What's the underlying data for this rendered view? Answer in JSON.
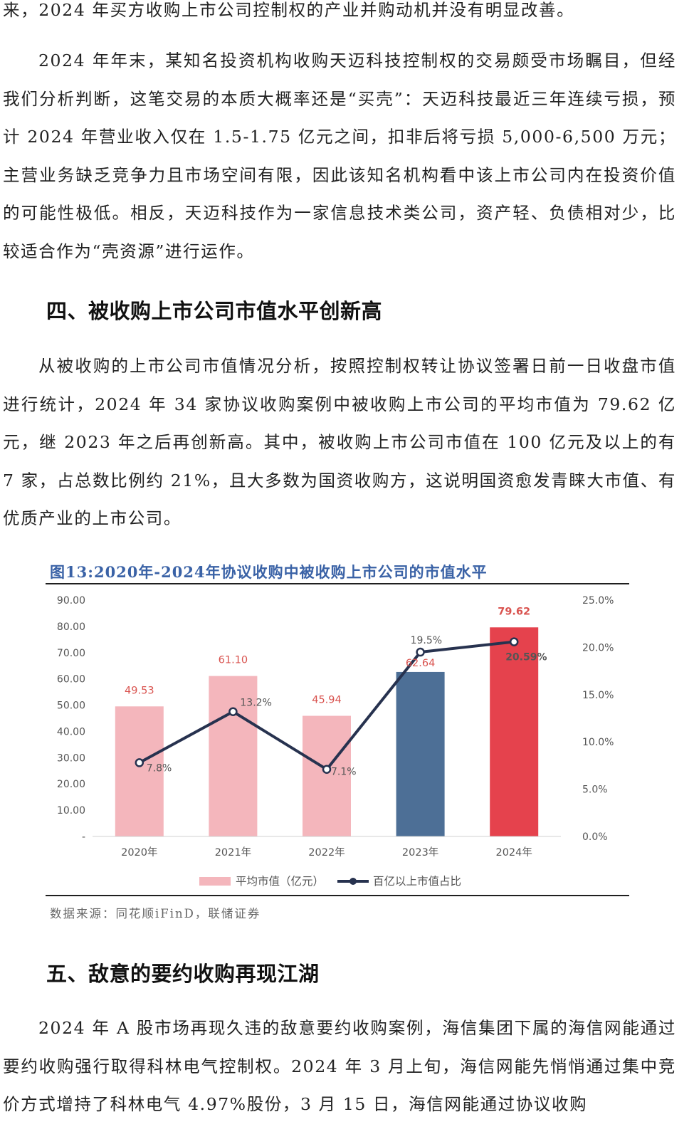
{
  "paragraphs": {
    "p0": "来，2024 年买方收购上市公司控制权的产业并购动机并没有明显改善。",
    "p1": "2024 年年末，某知名投资机构收购天迈科技控制权的交易颇受市场瞩目，但经我们分析判断，这笔交易的本质大概率还是“买壳”：天迈科技最近三年连续亏损，预计 2024 年营业收入仅在 1.5-1.75 亿元之间，扣非后将亏损 5,000-6,500 万元；主营业务缺乏竞争力且市场空间有限，因此该知名机构看中该上市公司内在投资价值的可能性极低。相反，天迈科技作为一家信息技术类公司，资产轻、负债相对少，比较适合作为“壳资源”进行运作。",
    "p2": "从被收购的上市公司市值情况分析，按照控制权转让协议签署日前一日收盘市值进行统计，2024 年 34 家协议收购案例中被收购上市公司的平均市值为 79.62 亿元，继 2023 年之后再创新高。其中，被收购上市公司市值在 100 亿元及以上的有 7 家，占总数比例约 21%，且大多数为国资收购方，这说明国资愈发青睐大市值、有优质产业的上市公司。",
    "p3": "2024 年 A 股市场再现久违的敌意要约收购案例，海信集团下属的海信网能通过要约收购强行取得科林电气控制权。2024 年 3 月上旬，海信网能先悄悄通过集中竞价方式增持了科林电气 4.97%股份，3 月 15 日，海信网能通过协议收购"
  },
  "headings": {
    "h4": "四、被收购上市公司市值水平创新高",
    "h5": "五、敌意的要约收购再现江湖"
  },
  "figure": {
    "title": "图13:2020年-2024年协议收购中被收购上市公司的市值水平",
    "source": "数据来源：同花顺iFinD，联储证券"
  },
  "chart_data": {
    "type": "bar",
    "categories": [
      "2020年",
      "2021年",
      "2022年",
      "2023年",
      "2024年"
    ],
    "series": [
      {
        "name": "平均市值（亿元）",
        "type": "bar",
        "axis": "left",
        "values": [
          49.53,
          61.1,
          45.94,
          62.64,
          79.62
        ],
        "value_labels": [
          "49.53",
          "61.10",
          "45.94",
          "62.64",
          "79.62"
        ],
        "bar_colors": [
          "#f4b6bc",
          "#f4b6bc",
          "#f4b6bc",
          "#4d6f96",
          "#e5424d"
        ]
      },
      {
        "name": "百亿以上市值占比",
        "type": "line",
        "axis": "right",
        "values": [
          7.8,
          13.2,
          7.1,
          19.5,
          20.59
        ],
        "value_labels": [
          "7.8%",
          "13.2%",
          "7.1%",
          "19.5%",
          "20.59%"
        ],
        "color": "#27324f"
      }
    ],
    "y_left": {
      "ylim": [
        0,
        90
      ],
      "ticks": [
        "-",
        "10.00",
        "20.00",
        "30.00",
        "40.00",
        "50.00",
        "60.00",
        "70.00",
        "80.00",
        "90.00"
      ]
    },
    "y_right": {
      "ylim": [
        0,
        25
      ],
      "ticks": [
        "0.0%",
        "5.0%",
        "10.0%",
        "15.0%",
        "20.0%",
        "25.0%"
      ]
    },
    "grid": false,
    "legend": "bottom",
    "label_colors": {
      "bar_value": "#d9534f",
      "line_value": "#555555"
    }
  }
}
